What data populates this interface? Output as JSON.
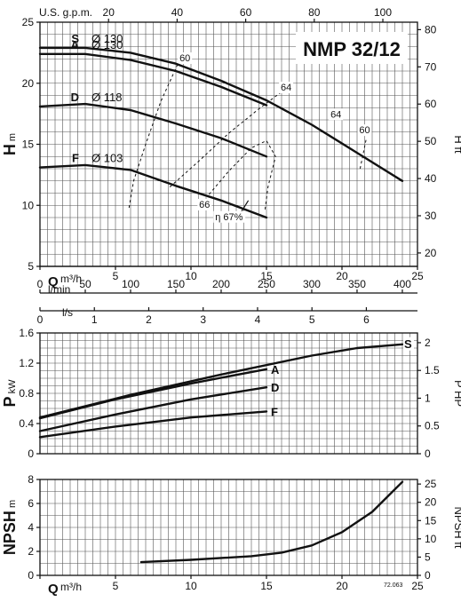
{
  "title": "NMP 32/12",
  "footnote": "72.063",
  "chart_data": [
    {
      "type": "line",
      "id": "head",
      "xlim": [
        0,
        25
      ],
      "ylim": [
        5,
        25
      ],
      "ylabel": "H",
      "ylabel_unit": "m",
      "yticks": [
        5,
        10,
        15,
        20,
        25
      ],
      "right_axis": {
        "label": "H",
        "unit": "ft",
        "lim": [
          16.4,
          82.0
        ],
        "ticks": [
          20,
          30,
          40,
          50,
          60,
          70,
          80
        ]
      },
      "top_axis": {
        "label": "U.S. g.p.m.",
        "lim": [
          0,
          110.1
        ],
        "ticks": [
          20,
          40,
          60,
          80,
          100
        ]
      },
      "series": [
        {
          "name": "S",
          "diameter": "Ø 130",
          "x": [
            0,
            3,
            6,
            9,
            12,
            15,
            18,
            21,
            24
          ],
          "y": [
            22.9,
            22.9,
            22.5,
            21.6,
            20.2,
            18.6,
            16.6,
            14.3,
            12.0
          ]
        },
        {
          "name": "A",
          "diameter": "Ø 130",
          "x": [
            0,
            3,
            6,
            9,
            12,
            15
          ],
          "y": [
            22.4,
            22.4,
            21.9,
            21.0,
            19.7,
            18.2
          ]
        },
        {
          "name": "D",
          "diameter": "Ø 118",
          "x": [
            0,
            3,
            6,
            9,
            12,
            15
          ],
          "y": [
            18.1,
            18.3,
            17.8,
            16.7,
            15.5,
            14.0
          ]
        },
        {
          "name": "F",
          "diameter": "Ø 103",
          "x": [
            0,
            3,
            6,
            9,
            12,
            15
          ],
          "y": [
            13.1,
            13.3,
            12.9,
            11.6,
            10.4,
            9.0
          ]
        }
      ],
      "efficiency": {
        "label": "η 67%",
        "iso_labels": [
          {
            "text": "60",
            "x": 9.6,
            "y": 21.8
          },
          {
            "text": "64",
            "x": 16.3,
            "y": 19.4
          },
          {
            "text": "64",
            "x": 19.6,
            "y": 17.2
          },
          {
            "text": "60",
            "x": 21.5,
            "y": 15.9
          },
          {
            "text": "66",
            "x": 10.9,
            "y": 9.8
          }
        ],
        "lines": [
          {
            "x": [
              5.9,
              6.2,
              7.0,
              8.0,
              9.1
            ],
            "y": [
              9.8,
              12.0,
              15.0,
              18.5,
              21.5
            ]
          },
          {
            "x": [
              8.6,
              10.5,
              12.5,
              14.5,
              16.0
            ],
            "y": [
              11.5,
              13.6,
              15.9,
              17.9,
              19.3
            ]
          },
          {
            "x": [
              21.2,
              21.4,
              21.6
            ],
            "y": [
              13.0,
              14.2,
              15.4
            ]
          },
          {
            "x": [
              11.2,
              12.5,
              14.0,
              15.0,
              15.6,
              15.1,
              14.9
            ],
            "y": [
              10.9,
              12.8,
              14.7,
              15.3,
              14.0,
              11.5,
              9.6
            ]
          }
        ],
        "tick": {
          "x": [
            13.3,
            13.8
          ],
          "y": [
            9.4,
            10.4
          ]
        }
      }
    },
    {
      "type": "scale",
      "id": "flow-axes",
      "scales": [
        {
          "label": "Q",
          "unit": "m³/h",
          "lim": [
            0,
            25
          ],
          "ticks": [
            0,
            5,
            10,
            15,
            20,
            25
          ]
        },
        {
          "label": "",
          "unit": "l/min",
          "lim": [
            0,
            416.7
          ],
          "ticks": [
            0,
            50,
            100,
            150,
            200,
            250,
            300,
            350,
            400
          ]
        },
        {
          "label": "",
          "unit": "l/s",
          "lim": [
            0,
            6.94
          ],
          "ticks": [
            0,
            1,
            2,
            3,
            4,
            5,
            6
          ]
        }
      ]
    },
    {
      "type": "line",
      "id": "power",
      "xlim": [
        0,
        25
      ],
      "ylim": [
        0,
        1.6
      ],
      "ylabel": "P",
      "ylabel_unit": "kW",
      "yticks": [
        0,
        0.4,
        0.8,
        1.2,
        1.6
      ],
      "right_axis": {
        "label": "P",
        "unit": "HP",
        "lim": [
          0,
          2.175
        ],
        "ticks": [
          0,
          0.5,
          1,
          1.5,
          2
        ]
      },
      "series": [
        {
          "name": "S",
          "x": [
            0,
            6,
            12,
            18,
            21,
            24
          ],
          "y": [
            0.48,
            0.78,
            1.05,
            1.3,
            1.4,
            1.45
          ]
        },
        {
          "name": "A",
          "x": [
            0,
            5,
            10,
            15
          ],
          "y": [
            0.47,
            0.72,
            0.93,
            1.12
          ]
        },
        {
          "name": "D",
          "x": [
            0,
            5,
            10,
            15
          ],
          "y": [
            0.3,
            0.52,
            0.72,
            0.88
          ]
        },
        {
          "name": "F",
          "x": [
            0,
            5,
            10,
            15
          ],
          "y": [
            0.22,
            0.36,
            0.48,
            0.56
          ]
        }
      ]
    },
    {
      "type": "line",
      "id": "npsh",
      "xlim": [
        0,
        25
      ],
      "ylim": [
        0,
        8
      ],
      "ylabel": "NPSH",
      "ylabel_unit": "m",
      "xlabel": "Q",
      "xlabel_unit": "m³/h",
      "xticks": [
        0,
        5,
        10,
        15,
        20,
        25
      ],
      "yticks": [
        0,
        2,
        4,
        6,
        8
      ],
      "right_axis": {
        "label": "NPSH",
        "unit": "ft",
        "lim": [
          0,
          26.25
        ],
        "ticks": [
          0,
          5,
          10,
          15,
          20,
          25
        ]
      },
      "series": [
        {
          "name": "",
          "x": [
            6.7,
            10,
            14,
            16,
            18,
            20,
            22,
            24
          ],
          "y": [
            1.1,
            1.3,
            1.6,
            1.9,
            2.5,
            3.6,
            5.3,
            7.8
          ]
        }
      ]
    }
  ]
}
